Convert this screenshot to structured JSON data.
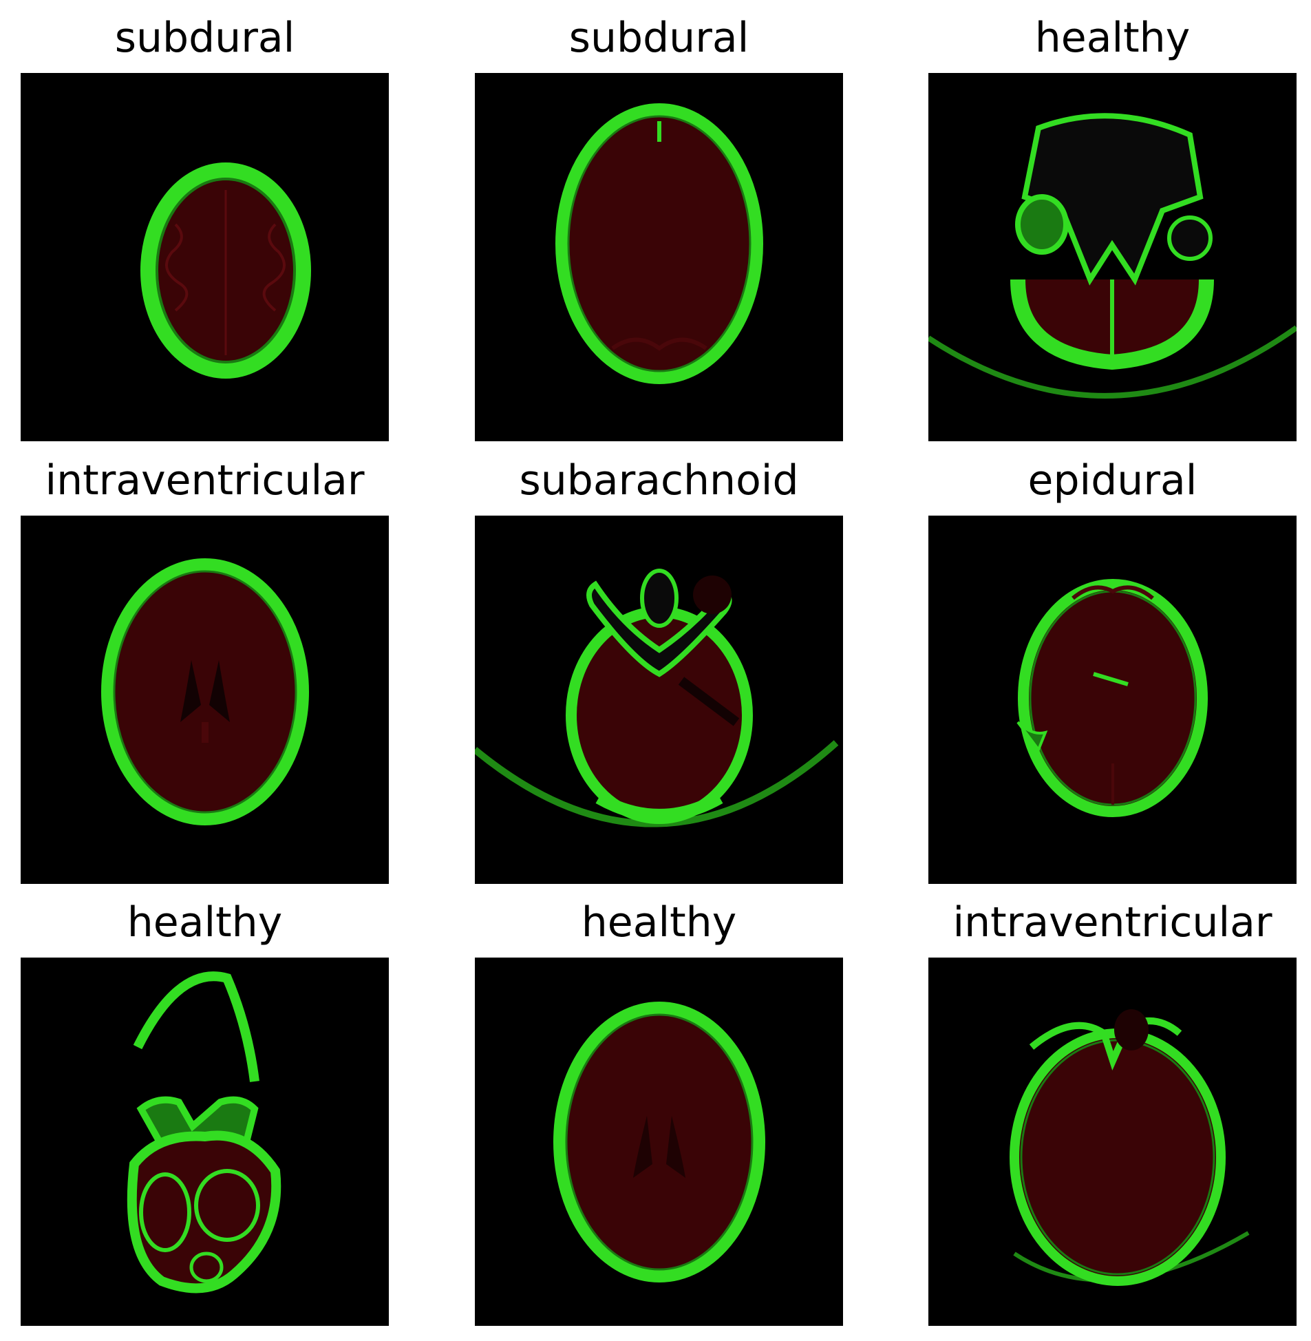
{
  "grid": {
    "panels": [
      {
        "label": "subdural"
      },
      {
        "label": "subdural"
      },
      {
        "label": "healthy"
      },
      {
        "label": "intraventricular"
      },
      {
        "label": "subarachnoid"
      },
      {
        "label": "epidural"
      },
      {
        "label": "healthy"
      },
      {
        "label": "healthy"
      },
      {
        "label": "intraventricular"
      }
    ]
  },
  "colors": {
    "background": "#000000",
    "bone": "#33dd22",
    "bone_dark": "#1a7a12",
    "tissue": "#3a0406",
    "tissue_light": "#4a070a"
  }
}
